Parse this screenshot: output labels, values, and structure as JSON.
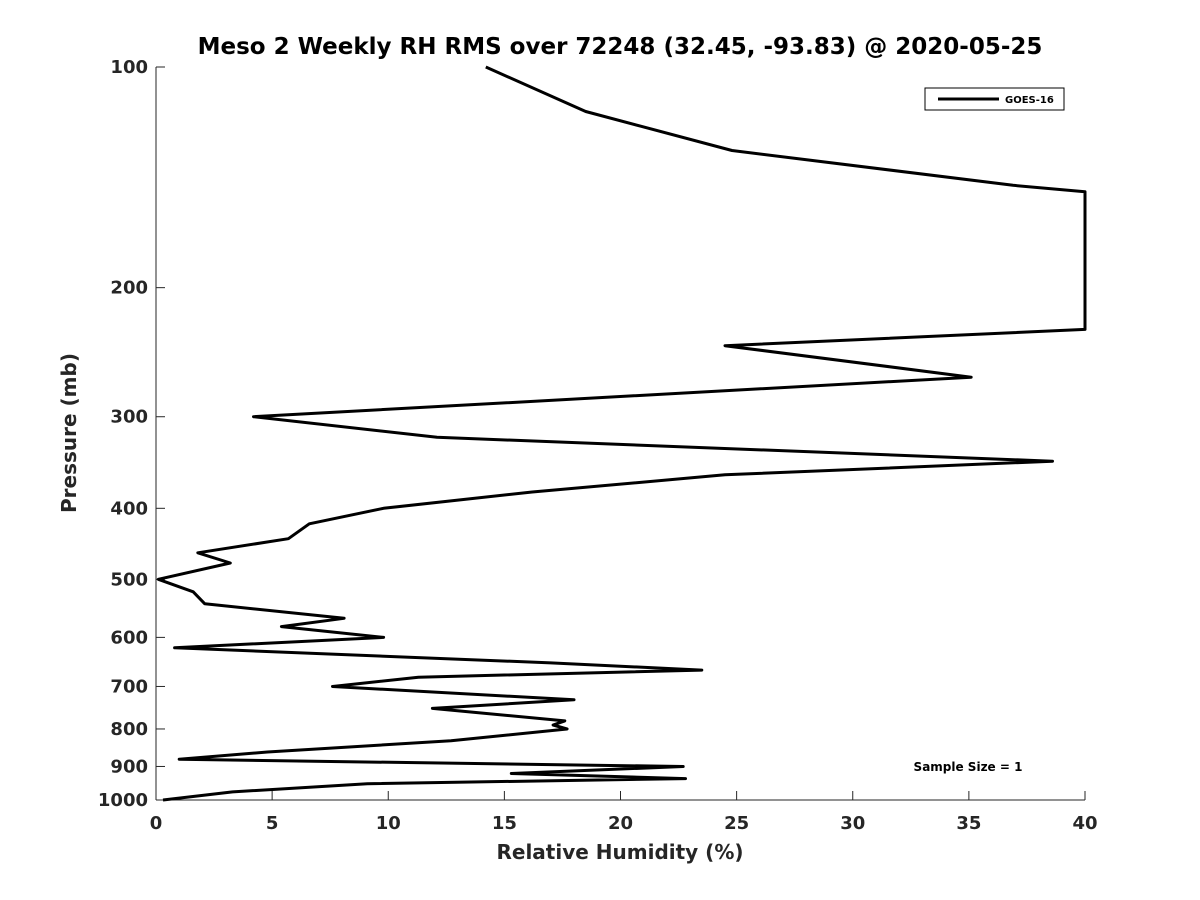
{
  "chart_data": {
    "type": "line",
    "title": "Meso 2 Weekly RH RMS over 72248 (32.45, -93.83) @ 2020-05-25",
    "xlabel": "Relative Humidity (%)",
    "ylabel": "Pressure (mb)",
    "xlim": [
      0,
      40
    ],
    "ylim": [
      1000,
      100
    ],
    "y_scale": "log",
    "x_ticks": [
      0,
      5,
      10,
      15,
      20,
      25,
      30,
      35,
      40
    ],
    "y_ticks": [
      100,
      200,
      300,
      400,
      500,
      600,
      700,
      800,
      900,
      1000
    ],
    "grid": false,
    "legend_position": "top-right",
    "annotation": "Sample Size = 1",
    "series": [
      {
        "name": "GOES-16",
        "color": "#000000",
        "points": [
          [
            14.2,
            100
          ],
          [
            18.5,
            115
          ],
          [
            24.8,
            130
          ],
          [
            36.9,
            145
          ],
          [
            40,
            148
          ],
          [
            40,
            228
          ],
          [
            24.5,
            240
          ],
          [
            35.1,
            265
          ],
          [
            4.2,
            300
          ],
          [
            12.1,
            320
          ],
          [
            38.6,
            345
          ],
          [
            24.5,
            360
          ],
          [
            16.2,
            380
          ],
          [
            9.8,
            400
          ],
          [
            6.6,
            420
          ],
          [
            5.7,
            440
          ],
          [
            1.8,
            460
          ],
          [
            3.2,
            475
          ],
          [
            0.1,
            500
          ],
          [
            1.6,
            520
          ],
          [
            2.1,
            540
          ],
          [
            8.1,
            565
          ],
          [
            5.4,
            580
          ],
          [
            9.8,
            600
          ],
          [
            0.8,
            620
          ],
          [
            17.0,
            650
          ],
          [
            23.5,
            665
          ],
          [
            11.3,
            680
          ],
          [
            7.6,
            700
          ],
          [
            18.0,
            730
          ],
          [
            11.9,
            750
          ],
          [
            17.6,
            780
          ],
          [
            17.1,
            790
          ],
          [
            17.7,
            800
          ],
          [
            12.7,
            830
          ],
          [
            4.8,
            860
          ],
          [
            1.0,
            880
          ],
          [
            22.7,
            900
          ],
          [
            15.3,
            920
          ],
          [
            22.8,
            935
          ],
          [
            9.1,
            950
          ],
          [
            3.3,
            975
          ],
          [
            0.3,
            1000
          ]
        ]
      }
    ]
  }
}
